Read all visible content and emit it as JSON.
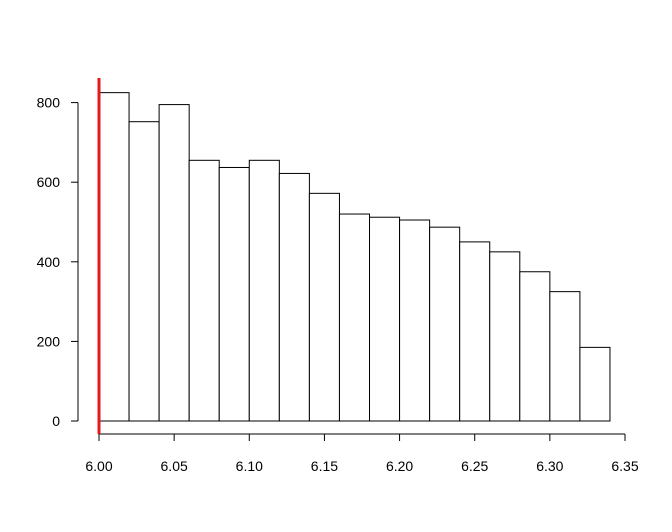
{
  "chart_data": {
    "type": "bar",
    "title": "",
    "xlabel": "",
    "ylabel": "",
    "bin_edges": [
      6.0,
      6.02,
      6.04,
      6.06,
      6.08,
      6.1,
      6.12,
      6.14,
      6.16,
      6.18,
      6.2,
      6.22,
      6.24,
      6.26,
      6.28,
      6.3,
      6.32,
      6.34
    ],
    "values": [
      825,
      752,
      795,
      655,
      637,
      655,
      622,
      572,
      520,
      512,
      505,
      487,
      450,
      425,
      375,
      325,
      185
    ],
    "xlim": [
      6.0,
      6.35
    ],
    "ylim": [
      0,
      860
    ],
    "x_ticks": [
      "6.00",
      "6.05",
      "6.10",
      "6.15",
      "6.20",
      "6.25",
      "6.30",
      "6.35"
    ],
    "y_ticks": [
      "0",
      "200",
      "400",
      "600",
      "800"
    ],
    "reference_line": {
      "x": 6.0,
      "color": "#e31a1c"
    },
    "bar_fill": "#ffffff",
    "bar_stroke": "#000000",
    "grid": false,
    "legend": "none"
  }
}
